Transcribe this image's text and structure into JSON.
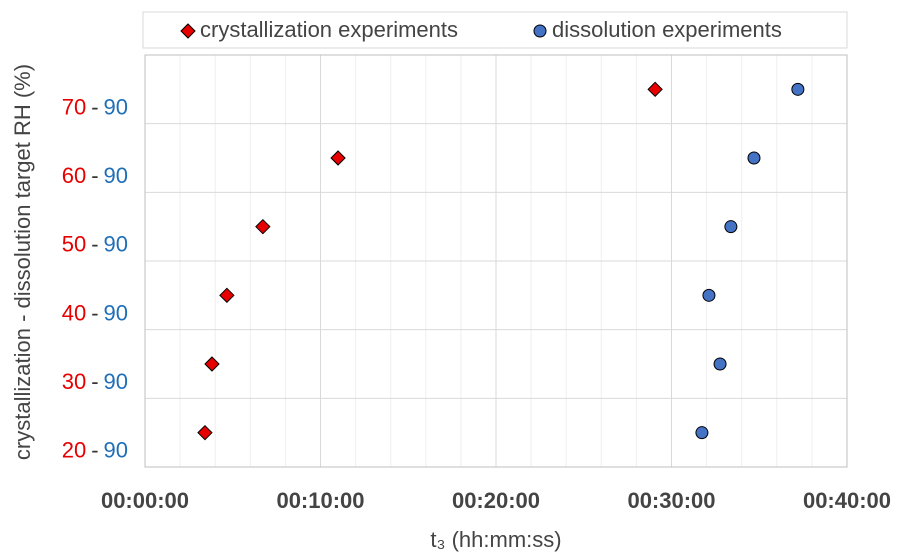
{
  "chart_data": {
    "type": "scatter",
    "x_label": "t₃ (hh:mm:ss)",
    "y_label": "crystallization - dissolution target RH (%)",
    "categories": [
      [
        "20",
        "-",
        "90"
      ],
      [
        "30",
        "-",
        "90"
      ],
      [
        "40",
        "-",
        "90"
      ],
      [
        "50",
        "-",
        "90"
      ],
      [
        "60",
        "-",
        "90"
      ],
      [
        "70",
        "-",
        "90"
      ]
    ],
    "category_colors": [
      "#e60000",
      "#333333",
      "#1f6fb8"
    ],
    "series": [
      {
        "name": "crystallization experiments",
        "color": "#e60000",
        "marker": "diamond",
        "values": [
          205,
          229,
          280,
          403,
          660,
          1744
        ]
      },
      {
        "name": "dissolution experiments",
        "color": "#4472c4",
        "marker": "circle",
        "values": [
          1904,
          1966,
          1928,
          2003,
          2082,
          2232
        ]
      }
    ],
    "xlim": [
      0,
      2400
    ],
    "xticks": [
      {
        "value": 0,
        "label": "00:00:00"
      },
      {
        "value": 600,
        "label": "00:10:00"
      },
      {
        "value": 1200,
        "label": "00:20:00"
      },
      {
        "value": 1800,
        "label": "00:30:00"
      },
      {
        "value": 2400,
        "label": "00:40:00"
      }
    ],
    "minor_grid_interval": 120,
    "grid": true,
    "legend": "top"
  }
}
